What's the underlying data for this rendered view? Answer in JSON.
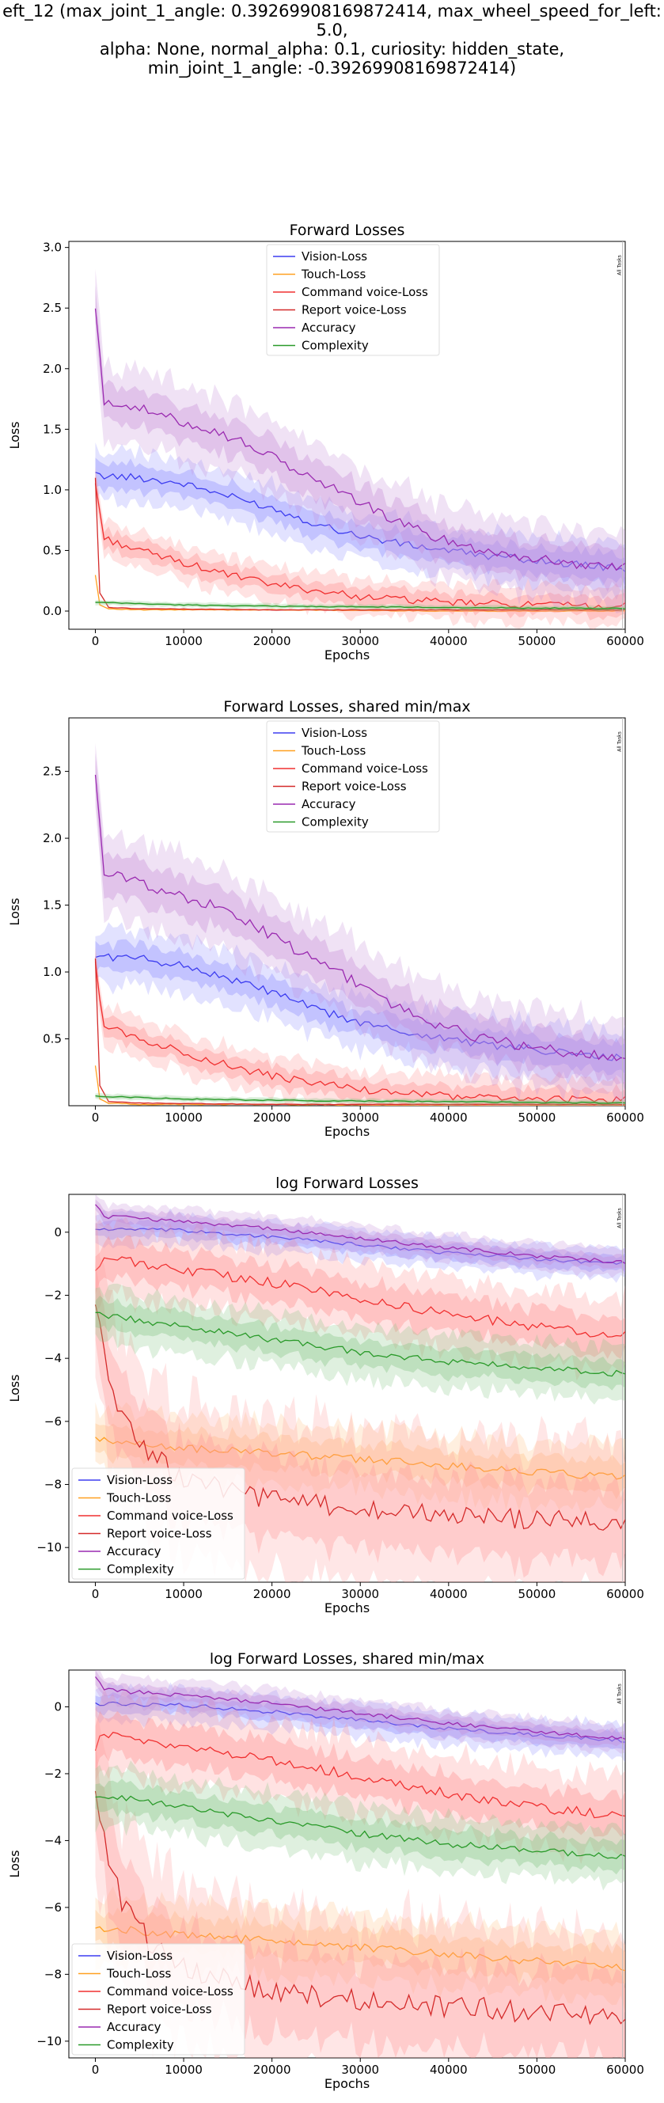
{
  "figure_title_lines": [
    "eft_12 (max_joint_1_angle: 0.39269908169872414, max_wheel_speed_for_left: 5.0,",
    "alpha: None, normal_alpha: 0.1, curiosity: hidden_state,",
    "min_joint_1_angle: -0.39269908169872414)"
  ],
  "colors": {
    "vision": "#3d3df0",
    "touch": "#ffa020",
    "command": "#f03030",
    "report": "#d42a2a",
    "accuracy": "#9a2ab0",
    "complexity": "#2a9a2a",
    "band_vision": "#8a8aff",
    "band_touch": "#ffc080",
    "band_command": "#ff8a8a",
    "band_report": "#ff9a9a",
    "band_accuracy": "#c58ad6",
    "band_complexity": "#80c480"
  },
  "chart_data": [
    {
      "type": "line",
      "title": "Forward Losses",
      "xlabel": "Epochs",
      "ylabel": "Loss",
      "xlim": [
        -3000,
        60000
      ],
      "ylim": [
        -0.15,
        3.05
      ],
      "xticks": [
        "0",
        "10000",
        "20000",
        "30000",
        "40000",
        "50000",
        "60000"
      ],
      "yticks": [
        "0.0",
        "0.5",
        "1.0",
        "1.5",
        "2.0",
        "2.5",
        "3.0"
      ],
      "ytick_values": [
        0,
        0.5,
        1.0,
        1.5,
        2.0,
        2.5,
        3.0
      ],
      "legend": "upper center",
      "annotation": "All Tasks",
      "series": [
        {
          "name": "Vision-Loss",
          "x": [
            0,
            5000,
            10000,
            15000,
            20000,
            25000,
            30000,
            35000,
            40000,
            45000,
            50000,
            55000,
            60000
          ],
          "values": [
            1.12,
            1.1,
            1.05,
            0.95,
            0.85,
            0.72,
            0.62,
            0.55,
            0.5,
            0.45,
            0.42,
            0.38,
            0.35
          ]
        },
        {
          "name": "Touch-Loss",
          "x": [
            0,
            500,
            1500,
            5000,
            20000,
            40000,
            60000
          ],
          "values": [
            0.3,
            0.05,
            0.02,
            0.01,
            0.01,
            0.0,
            0.0
          ]
        },
        {
          "name": "Command voice-Loss",
          "x": [
            0,
            1000,
            5000,
            10000,
            15000,
            20000,
            30000,
            40000,
            50000,
            60000
          ],
          "values": [
            1.05,
            0.6,
            0.5,
            0.4,
            0.3,
            0.22,
            0.12,
            0.07,
            0.05,
            0.04
          ]
        },
        {
          "name": "Report voice-Loss",
          "x": [
            0,
            500,
            1500,
            5000,
            20000,
            40000,
            60000
          ],
          "values": [
            1.1,
            0.15,
            0.03,
            0.02,
            0.01,
            0.01,
            0.01
          ]
        },
        {
          "name": "Accuracy",
          "x": [
            0,
            1000,
            3000,
            8000,
            13000,
            18000,
            23000,
            28000,
            33000,
            38000,
            43000,
            48000,
            53000,
            58000,
            60000
          ],
          "values": [
            2.5,
            1.7,
            1.72,
            1.6,
            1.5,
            1.35,
            1.15,
            0.98,
            0.78,
            0.62,
            0.52,
            0.45,
            0.4,
            0.37,
            0.36
          ]
        },
        {
          "name": "Complexity",
          "x": [
            0,
            1000,
            10000,
            20000,
            40000,
            60000
          ],
          "values": [
            0.07,
            0.07,
            0.05,
            0.04,
            0.03,
            0.02
          ]
        }
      ]
    },
    {
      "type": "line",
      "title": "Forward Losses, shared min/max",
      "xlabel": "Epochs",
      "ylabel": "Loss",
      "xlim": [
        -3000,
        60000
      ],
      "ylim": [
        0.0,
        2.9
      ],
      "xticks": [
        "0",
        "10000",
        "20000",
        "30000",
        "40000",
        "50000",
        "60000"
      ],
      "yticks": [
        "0.5",
        "1.0",
        "1.5",
        "2.0",
        "2.5"
      ],
      "ytick_values": [
        0.5,
        1.0,
        1.5,
        2.0,
        2.5
      ],
      "legend": "upper center",
      "annotation": "All Tasks",
      "series": [
        {
          "name": "Vision-Loss",
          "x": [
            0,
            5000,
            10000,
            15000,
            20000,
            25000,
            30000,
            35000,
            40000,
            45000,
            50000,
            55000,
            60000
          ],
          "values": [
            1.12,
            1.1,
            1.05,
            0.95,
            0.85,
            0.72,
            0.62,
            0.55,
            0.5,
            0.45,
            0.42,
            0.38,
            0.35
          ]
        },
        {
          "name": "Touch-Loss",
          "x": [
            0,
            500,
            1500,
            5000,
            20000,
            40000,
            60000
          ],
          "values": [
            0.3,
            0.05,
            0.02,
            0.01,
            0.01,
            0.0,
            0.0
          ]
        },
        {
          "name": "Command voice-Loss",
          "x": [
            0,
            1000,
            5000,
            10000,
            15000,
            20000,
            30000,
            40000,
            50000,
            60000
          ],
          "values": [
            1.05,
            0.6,
            0.5,
            0.4,
            0.3,
            0.22,
            0.12,
            0.07,
            0.05,
            0.04
          ]
        },
        {
          "name": "Report voice-Loss",
          "x": [
            0,
            500,
            1500,
            5000,
            20000,
            40000,
            60000
          ],
          "values": [
            1.1,
            0.15,
            0.03,
            0.02,
            0.01,
            0.01,
            0.01
          ]
        },
        {
          "name": "Accuracy",
          "x": [
            0,
            1000,
            3000,
            8000,
            13000,
            18000,
            23000,
            28000,
            33000,
            38000,
            43000,
            48000,
            53000,
            58000,
            60000
          ],
          "values": [
            2.5,
            1.7,
            1.72,
            1.6,
            1.5,
            1.35,
            1.15,
            0.98,
            0.78,
            0.62,
            0.52,
            0.45,
            0.4,
            0.37,
            0.36
          ]
        },
        {
          "name": "Complexity",
          "x": [
            0,
            1000,
            10000,
            20000,
            40000,
            60000
          ],
          "values": [
            0.07,
            0.07,
            0.05,
            0.04,
            0.03,
            0.02
          ]
        }
      ]
    },
    {
      "type": "line",
      "title": "log Forward Losses",
      "xlabel": "Epochs",
      "ylabel": "Loss",
      "xlim": [
        -3000,
        60000
      ],
      "ylim": [
        -11.1,
        1.2
      ],
      "xticks": [
        "0",
        "10000",
        "20000",
        "30000",
        "40000",
        "50000",
        "60000"
      ],
      "yticks": [
        "0",
        "−2",
        "−4",
        "−6",
        "−8",
        "−10"
      ],
      "ytick_values": [
        0,
        -2,
        -4,
        -6,
        -8,
        -10
      ],
      "legend": "lower left",
      "annotation": "All Tasks",
      "series": [
        {
          "name": "Vision-Loss",
          "x": [
            0,
            10000,
            20000,
            30000,
            40000,
            50000,
            60000
          ],
          "values": [
            0.1,
            0.05,
            -0.15,
            -0.4,
            -0.65,
            -0.85,
            -1.0
          ]
        },
        {
          "name": "Touch-Loss",
          "x": [
            0,
            5000,
            10000,
            20000,
            30000,
            40000,
            50000,
            60000
          ],
          "values": [
            -6.6,
            -6.7,
            -6.85,
            -7.0,
            -7.2,
            -7.4,
            -7.6,
            -7.8
          ]
        },
        {
          "name": "Command voice-Loss",
          "x": [
            0,
            1000,
            5000,
            10000,
            20000,
            30000,
            40000,
            50000,
            60000
          ],
          "values": [
            -1.2,
            -0.8,
            -1.0,
            -1.2,
            -1.6,
            -2.1,
            -2.6,
            -3.0,
            -3.3
          ]
        },
        {
          "name": "Report voice-Loss",
          "x": [
            0,
            1000,
            3000,
            6000,
            10000,
            15000,
            20000,
            30000,
            40000,
            50000,
            60000
          ],
          "values": [
            -2.4,
            -4.0,
            -5.8,
            -7.0,
            -7.8,
            -8.2,
            -8.5,
            -8.8,
            -9.0,
            -9.1,
            -9.2
          ]
        },
        {
          "name": "Accuracy",
          "x": [
            0,
            1000,
            10000,
            20000,
            30000,
            40000,
            50000,
            60000
          ],
          "values": [
            0.9,
            0.5,
            0.35,
            0.1,
            -0.2,
            -0.5,
            -0.75,
            -0.95
          ]
        },
        {
          "name": "Complexity",
          "x": [
            0,
            5000,
            10000,
            20000,
            30000,
            40000,
            50000,
            60000
          ],
          "values": [
            -2.6,
            -2.8,
            -3.0,
            -3.4,
            -3.8,
            -4.1,
            -4.3,
            -4.5
          ]
        }
      ]
    },
    {
      "type": "line",
      "title": "log Forward Losses, shared min/max",
      "xlabel": "Epochs",
      "ylabel": "Loss",
      "xlim": [
        -3000,
        60000
      ],
      "ylim": [
        -10.5,
        1.1
      ],
      "xticks": [
        "0",
        "10000",
        "20000",
        "30000",
        "40000",
        "50000",
        "60000"
      ],
      "yticks": [
        "0",
        "−2",
        "−4",
        "−6",
        "−8",
        "−10"
      ],
      "ytick_values": [
        0,
        -2,
        -4,
        -6,
        -8,
        -10
      ],
      "legend": "lower left",
      "annotation": "All Tasks",
      "series": [
        {
          "name": "Vision-Loss",
          "x": [
            0,
            10000,
            20000,
            30000,
            40000,
            50000,
            60000
          ],
          "values": [
            0.1,
            0.05,
            -0.15,
            -0.4,
            -0.65,
            -0.85,
            -1.0
          ]
        },
        {
          "name": "Touch-Loss",
          "x": [
            0,
            5000,
            10000,
            20000,
            30000,
            40000,
            50000,
            60000
          ],
          "values": [
            -6.6,
            -6.7,
            -6.85,
            -7.0,
            -7.2,
            -7.4,
            -7.6,
            -7.8
          ]
        },
        {
          "name": "Command voice-Loss",
          "x": [
            0,
            1000,
            5000,
            10000,
            20000,
            30000,
            40000,
            50000,
            60000
          ],
          "values": [
            -1.2,
            -0.8,
            -1.0,
            -1.2,
            -1.6,
            -2.1,
            -2.6,
            -3.0,
            -3.3
          ]
        },
        {
          "name": "Report voice-Loss",
          "x": [
            0,
            1000,
            3000,
            6000,
            10000,
            15000,
            20000,
            30000,
            40000,
            50000,
            60000
          ],
          "values": [
            -2.4,
            -4.0,
            -5.8,
            -7.0,
            -7.8,
            -8.2,
            -8.5,
            -8.8,
            -9.0,
            -9.1,
            -9.2
          ]
        },
        {
          "name": "Accuracy",
          "x": [
            0,
            1000,
            10000,
            20000,
            30000,
            40000,
            50000,
            60000
          ],
          "values": [
            0.9,
            0.5,
            0.35,
            0.1,
            -0.2,
            -0.5,
            -0.75,
            -0.95
          ]
        },
        {
          "name": "Complexity",
          "x": [
            0,
            5000,
            10000,
            20000,
            30000,
            40000,
            50000,
            60000
          ],
          "values": [
            -2.6,
            -2.8,
            -3.0,
            -3.4,
            -3.8,
            -4.1,
            -4.3,
            -4.5
          ]
        }
      ]
    }
  ]
}
